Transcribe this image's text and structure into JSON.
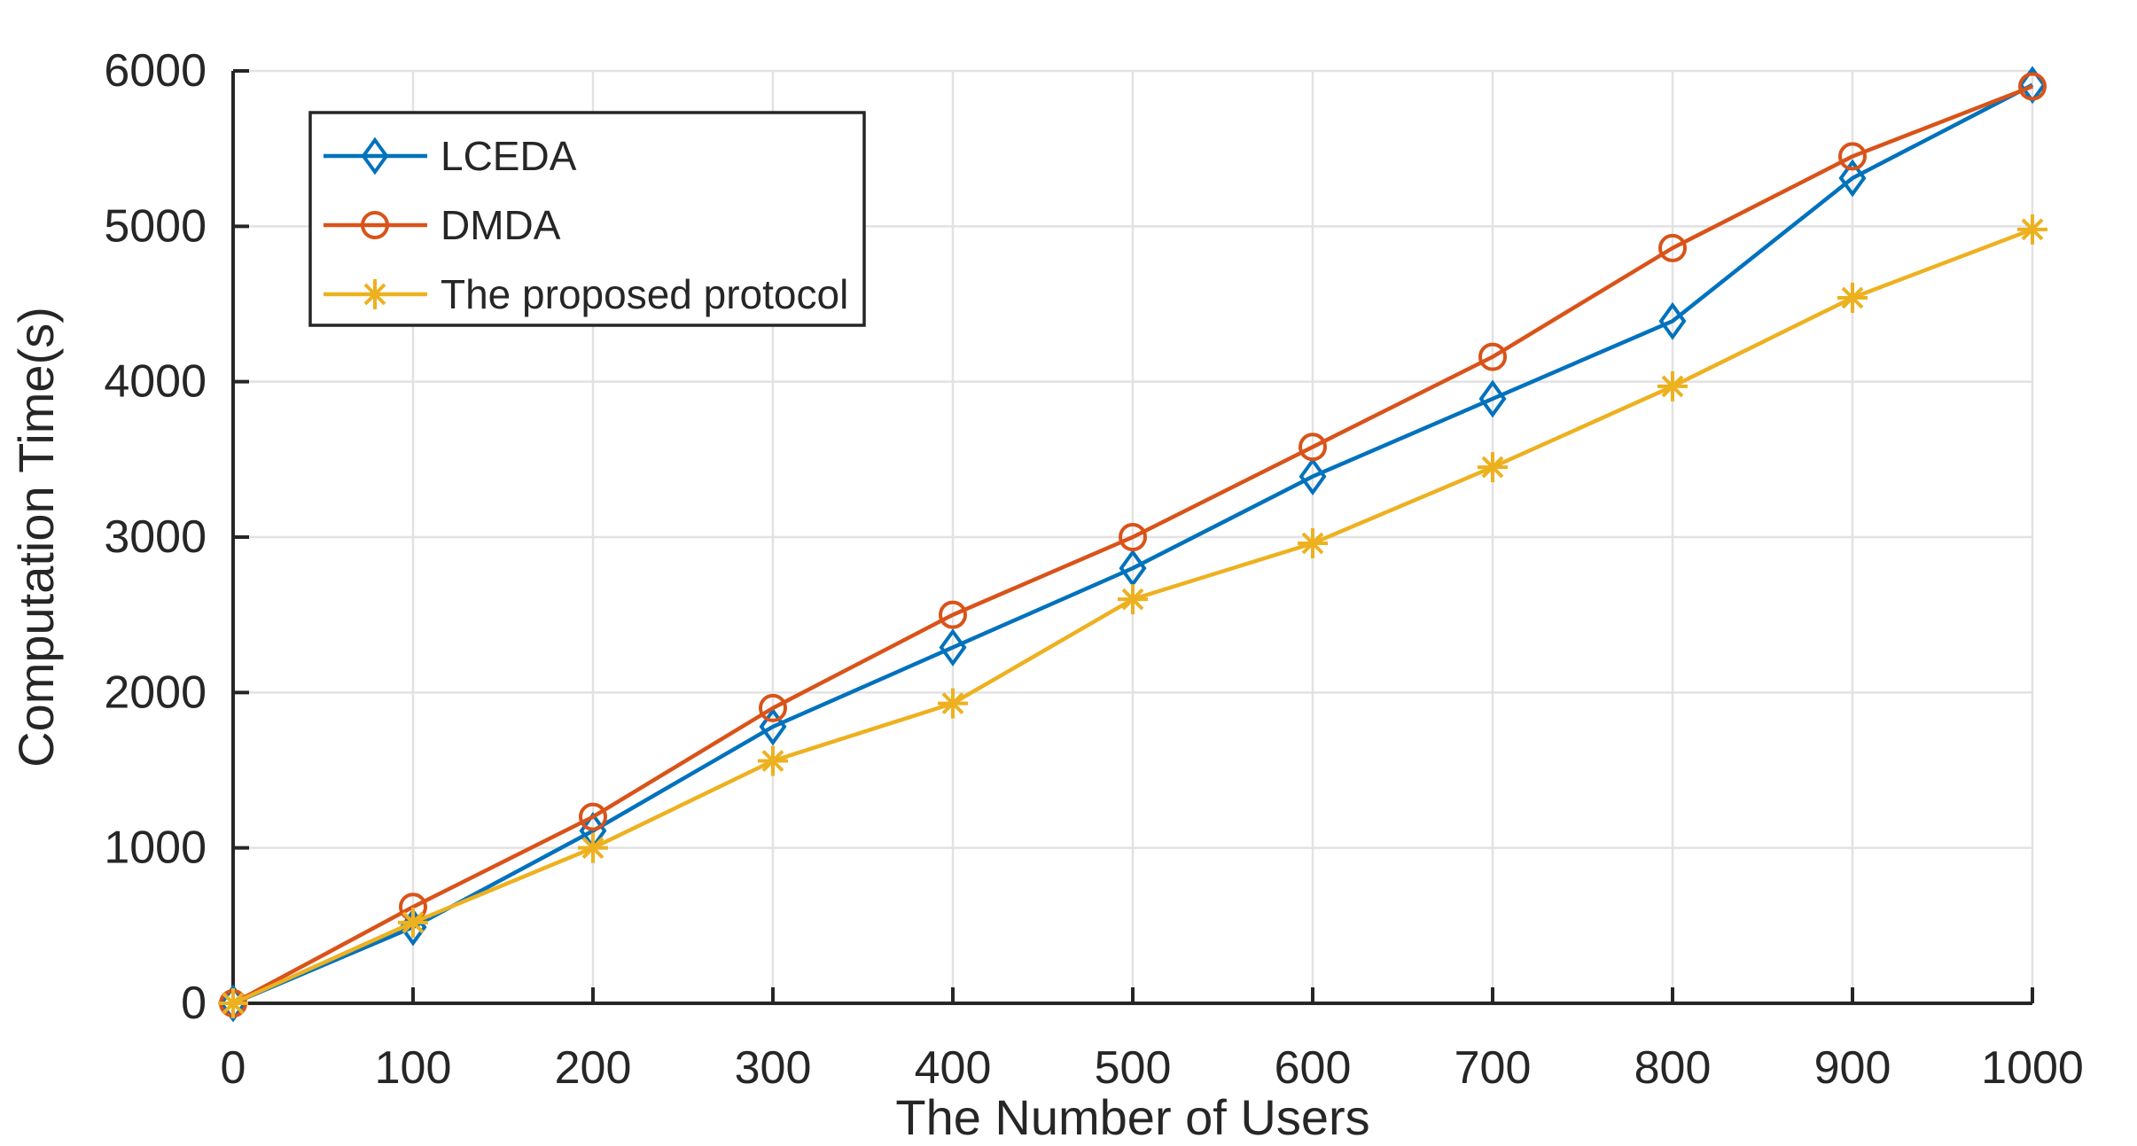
{
  "style": {
    "background": "#ffffff",
    "axis_color": "#262626",
    "grid_color": "#e2e2e2",
    "text_color": "#262626",
    "legend_border_color": "#262626",
    "legend_background": "#ffffff"
  },
  "chart_data": {
    "type": "line",
    "title": "",
    "xlabel": "The Number of Users",
    "ylabel": "Computation Time(s)",
    "xlim": [
      0,
      1000
    ],
    "ylim": [
      0,
      6000
    ],
    "x_ticks": [
      0,
      100,
      200,
      300,
      400,
      500,
      600,
      700,
      800,
      900,
      1000
    ],
    "y_ticks": [
      0,
      1000,
      2000,
      3000,
      4000,
      5000,
      6000
    ],
    "grid": true,
    "box": false,
    "tick_direction": "in",
    "legend_position": "top-left",
    "x": [
      0,
      100,
      200,
      300,
      400,
      500,
      600,
      700,
      800,
      900,
      1000
    ],
    "series": [
      {
        "name": "LCEDA",
        "color": "#0072BD",
        "marker": "diamond",
        "values": [
          0,
          490,
          1110,
          1780,
          2290,
          2800,
          3390,
          3890,
          4390,
          5310,
          5910
        ]
      },
      {
        "name": "DMDA",
        "color": "#D95319",
        "marker": "circle",
        "values": [
          0,
          620,
          1200,
          1900,
          2500,
          3000,
          3580,
          4160,
          4860,
          5450,
          5900
        ]
      },
      {
        "name": "The proposed protocol",
        "color": "#EDB120",
        "marker": "asterisk",
        "values": [
          0,
          520,
          1000,
          1560,
          1930,
          2600,
          2960,
          3450,
          3970,
          4540,
          4980
        ]
      }
    ]
  }
}
